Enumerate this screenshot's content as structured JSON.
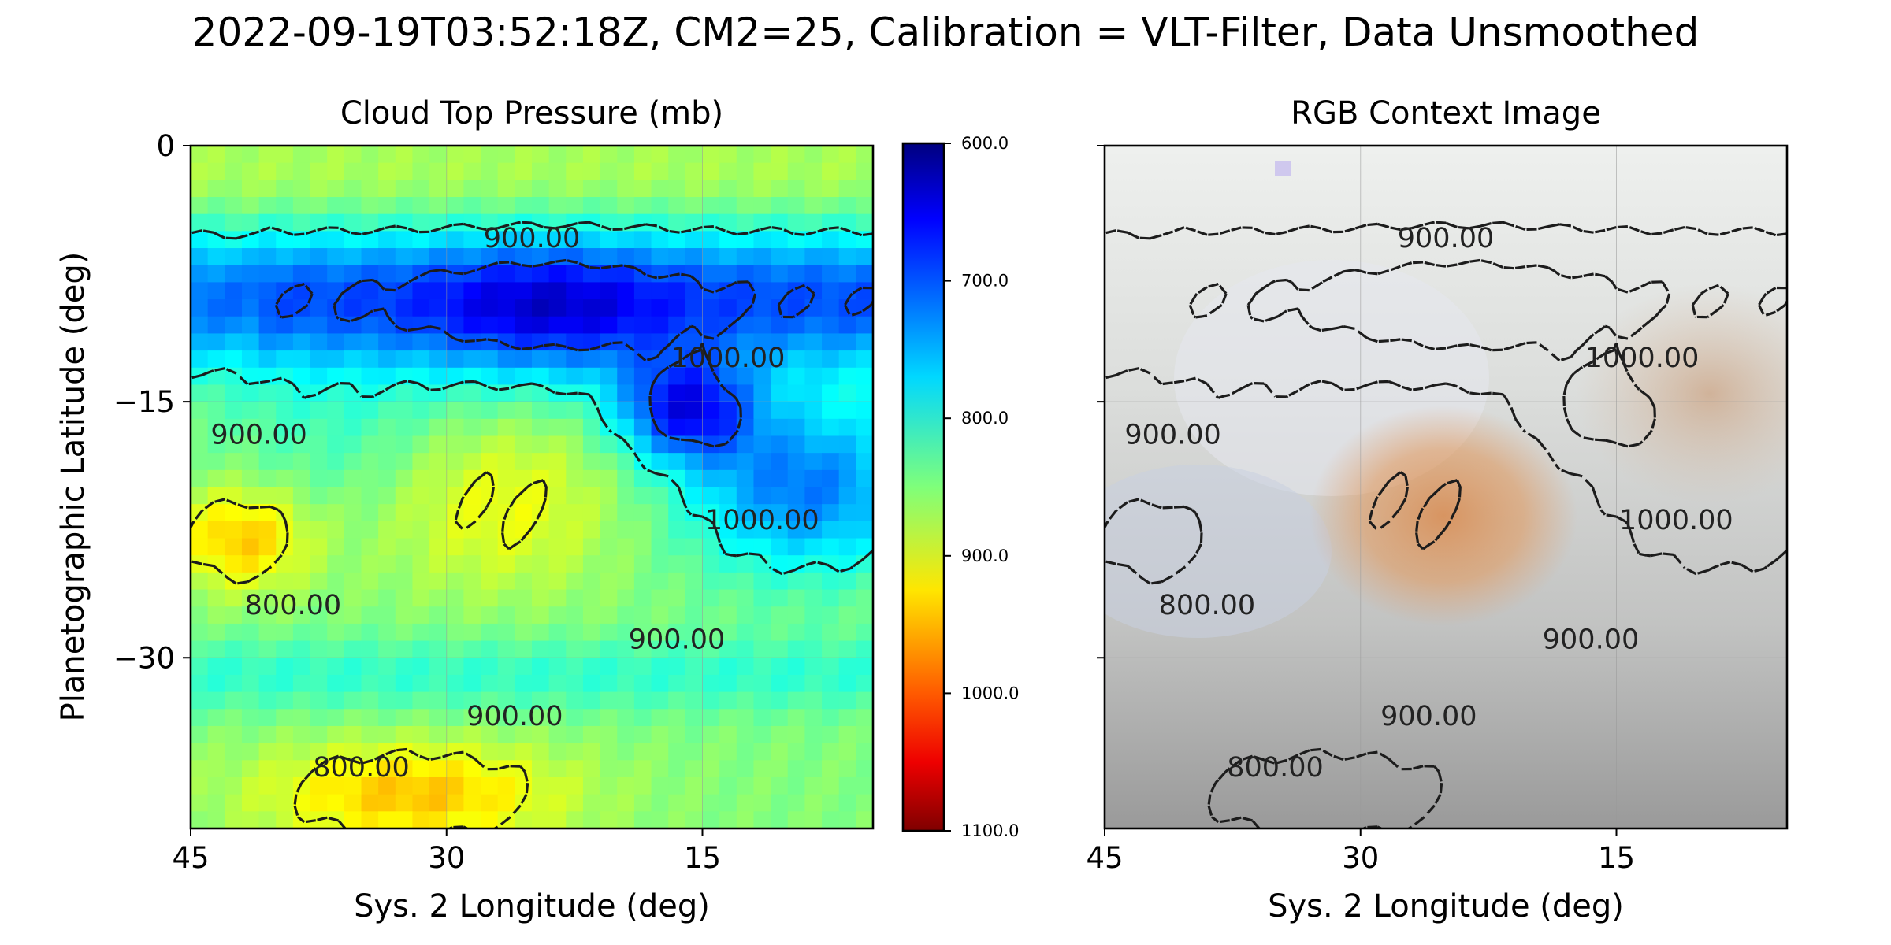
{
  "figure": {
    "suptitle": "2022-09-19T03:52:18Z, CM2=25, Calibration = VLT-Filter, Data Unsmoothed"
  },
  "chart_data": [
    {
      "type": "heatmap",
      "title": "Cloud Top Pressure (mb)",
      "xlabel": "Sys. 2 Longitude (deg)",
      "ylabel": "Planetographic Latitude (deg)",
      "xlim": [
        45,
        5
      ],
      "ylim": [
        -40,
        0
      ],
      "xticks": [
        "45",
        "30",
        "15"
      ],
      "xtick_values": [
        45,
        30,
        15
      ],
      "yticks": [
        "0",
        "−15",
        "−30"
      ],
      "ytick_values": [
        0,
        -15,
        -30
      ],
      "colorbar": {
        "range": [
          600,
          1100
        ],
        "colormap": "jet_r",
        "ticks": [
          "600.0",
          "700.0",
          "800.0",
          "900.0",
          "1000.0",
          "1100.0"
        ],
        "tick_values": [
          600,
          700,
          800,
          900,
          1000,
          1100
        ]
      },
      "contour_levels": [
        800,
        900,
        1000
      ],
      "contour_labels": [
        {
          "text": "900.00",
          "lon": 25,
          "lat": -5.5
        },
        {
          "text": "1000.00",
          "lon": 13.5,
          "lat": -12.5
        },
        {
          "text": "900.00",
          "lon": 41,
          "lat": -17
        },
        {
          "text": "1000.00",
          "lon": 11.5,
          "lat": -22
        },
        {
          "text": "800.00",
          "lon": 39,
          "lat": -27
        },
        {
          "text": "900.00",
          "lon": 16.5,
          "lat": -29
        },
        {
          "text": "900.00",
          "lon": 26,
          "lat": -33.5
        },
        {
          "text": "800.00",
          "lon": 35,
          "lat": -36.5
        }
      ]
    },
    {
      "type": "image",
      "title": "RGB Context Image",
      "xlabel": "Sys. 2 Longitude (deg)",
      "xticks": [
        "45",
        "30",
        "15"
      ],
      "xtick_values": [
        45,
        30,
        15
      ],
      "yticks": [
        "",
        "",
        ""
      ],
      "ytick_values": [
        0,
        -15,
        -30
      ],
      "contour_levels": [
        800,
        900,
        1000
      ],
      "contour_labels": [
        {
          "text": "900.00",
          "lon": 25,
          "lat": -5.5
        },
        {
          "text": "1000.00",
          "lon": 13.5,
          "lat": -12.5
        },
        {
          "text": "900.00",
          "lon": 41,
          "lat": -17
        },
        {
          "text": "1000.00",
          "lon": 11.5,
          "lat": -22
        },
        {
          "text": "800.00",
          "lon": 39,
          "lat": -27
        },
        {
          "text": "900.00",
          "lon": 16.5,
          "lat": -29
        },
        {
          "text": "900.00",
          "lon": 26,
          "lat": -33.5
        },
        {
          "text": "800.00",
          "lon": 35,
          "lat": -36.5
        }
      ]
    }
  ]
}
